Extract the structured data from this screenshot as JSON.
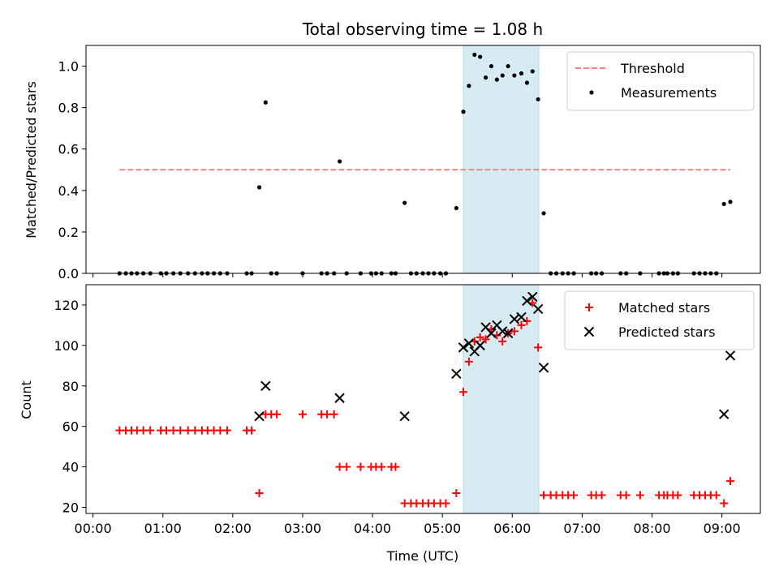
{
  "chart_data": {
    "title": "Total observing time = 1.08 h",
    "xlabel": "Time (UTC)",
    "x_unit": "hours",
    "xlim": [
      -0.1,
      9.55
    ],
    "xticks": [
      0,
      1,
      2,
      3,
      4,
      5,
      6,
      7,
      8,
      9
    ],
    "xticklabels": [
      "00:00",
      "01:00",
      "02:00",
      "03:00",
      "04:00",
      "05:00",
      "06:00",
      "07:00",
      "08:00",
      "09:00"
    ],
    "highlight_span": {
      "x0": 5.3,
      "x1": 6.38,
      "color": "#add8e6"
    },
    "panels": [
      {
        "type": "scatter",
        "ylabel": "Matched/Predicted stars",
        "ylim": [
          0.0,
          1.1
        ],
        "yticks": [
          0.0,
          0.2,
          0.4,
          0.6,
          0.8,
          1.0
        ],
        "yticklabels": [
          "0.0",
          "0.2",
          "0.4",
          "0.6",
          "0.8",
          "1.0"
        ],
        "legend_position": "top-right",
        "series": [
          {
            "name": "Threshold",
            "kind": "line",
            "style": "dashed",
            "color": "#ff8080",
            "x": [
              0.38,
              9.12
            ],
            "y": [
              0.5,
              0.5
            ]
          },
          {
            "name": "Measurements",
            "kind": "scatter",
            "marker": "dot",
            "color": "#000000",
            "points": [
              [
                0.38,
                0
              ],
              [
                0.47,
                0
              ],
              [
                0.55,
                0
              ],
              [
                0.63,
                0
              ],
              [
                0.72,
                0
              ],
              [
                0.82,
                0
              ],
              [
                0.97,
                0
              ],
              [
                1.05,
                0
              ],
              [
                1.15,
                0
              ],
              [
                1.25,
                0
              ],
              [
                1.36,
                0
              ],
              [
                1.46,
                0
              ],
              [
                1.56,
                0
              ],
              [
                1.64,
                0
              ],
              [
                1.73,
                0
              ],
              [
                1.82,
                0
              ],
              [
                1.92,
                0
              ],
              [
                2.2,
                0
              ],
              [
                2.27,
                0
              ],
              [
                2.38,
                0.415
              ],
              [
                2.47,
                0.825
              ],
              [
                2.55,
                0
              ],
              [
                2.63,
                0
              ],
              [
                3.0,
                0
              ],
              [
                3.27,
                0
              ],
              [
                3.35,
                0
              ],
              [
                3.45,
                0
              ],
              [
                3.53,
                0.54
              ],
              [
                3.63,
                0
              ],
              [
                3.83,
                0
              ],
              [
                3.98,
                0
              ],
              [
                4.05,
                0
              ],
              [
                4.13,
                0
              ],
              [
                4.27,
                0
              ],
              [
                4.33,
                0
              ],
              [
                4.46,
                0.34
              ],
              [
                4.55,
                0
              ],
              [
                4.63,
                0
              ],
              [
                4.72,
                0
              ],
              [
                4.8,
                0
              ],
              [
                4.88,
                0
              ],
              [
                4.97,
                0
              ],
              [
                5.05,
                0
              ],
              [
                5.2,
                0.315
              ],
              [
                5.3,
                0.78
              ],
              [
                5.38,
                0.905
              ],
              [
                5.46,
                1.055
              ],
              [
                5.54,
                1.045
              ],
              [
                5.62,
                0.945
              ],
              [
                5.7,
                1.0
              ],
              [
                5.78,
                0.935
              ],
              [
                5.86,
                0.955
              ],
              [
                5.94,
                1.0
              ],
              [
                6.03,
                0.955
              ],
              [
                6.13,
                0.965
              ],
              [
                6.21,
                0.92
              ],
              [
                6.29,
                0.975
              ],
              [
                6.37,
                0.84
              ],
              [
                6.45,
                0.29
              ],
              [
                6.55,
                0
              ],
              [
                6.63,
                0
              ],
              [
                6.72,
                0
              ],
              [
                6.8,
                0
              ],
              [
                6.88,
                0
              ],
              [
                7.13,
                0
              ],
              [
                7.2,
                0
              ],
              [
                7.28,
                0
              ],
              [
                7.55,
                0
              ],
              [
                7.63,
                0
              ],
              [
                7.83,
                0
              ],
              [
                8.1,
                0
              ],
              [
                8.17,
                0
              ],
              [
                8.22,
                0
              ],
              [
                8.3,
                0
              ],
              [
                8.37,
                0
              ],
              [
                8.6,
                0
              ],
              [
                8.68,
                0
              ],
              [
                8.76,
                0
              ],
              [
                8.84,
                0
              ],
              [
                8.92,
                0
              ],
              [
                9.03,
                0.335
              ],
              [
                9.12,
                0.345
              ]
            ]
          }
        ]
      },
      {
        "type": "scatter",
        "ylabel": "Count",
        "ylim": [
          17,
          130
        ],
        "yticks": [
          20,
          40,
          60,
          80,
          100,
          120
        ],
        "yticklabels": [
          "20",
          "40",
          "60",
          "80",
          "100",
          "120"
        ],
        "legend_position": "top-right",
        "series": [
          {
            "name": "Matched stars",
            "kind": "scatter",
            "marker": "plus",
            "color": "#ff0000",
            "points": [
              [
                0.38,
                58
              ],
              [
                0.47,
                58
              ],
              [
                0.55,
                58
              ],
              [
                0.63,
                58
              ],
              [
                0.72,
                58
              ],
              [
                0.82,
                58
              ],
              [
                0.97,
                58
              ],
              [
                1.05,
                58
              ],
              [
                1.15,
                58
              ],
              [
                1.25,
                58
              ],
              [
                1.36,
                58
              ],
              [
                1.46,
                58
              ],
              [
                1.56,
                58
              ],
              [
                1.64,
                58
              ],
              [
                1.73,
                58
              ],
              [
                1.82,
                58
              ],
              [
                1.92,
                58
              ],
              [
                2.2,
                58
              ],
              [
                2.27,
                58
              ],
              [
                2.38,
                27
              ],
              [
                2.47,
                66
              ],
              [
                2.55,
                66
              ],
              [
                2.63,
                66
              ],
              [
                3.0,
                66
              ],
              [
                3.27,
                66
              ],
              [
                3.35,
                66
              ],
              [
                3.45,
                66
              ],
              [
                3.53,
                40
              ],
              [
                3.63,
                40
              ],
              [
                3.83,
                40
              ],
              [
                3.98,
                40
              ],
              [
                4.05,
                40
              ],
              [
                4.13,
                40
              ],
              [
                4.27,
                40
              ],
              [
                4.33,
                40
              ],
              [
                4.46,
                22
              ],
              [
                4.55,
                22
              ],
              [
                4.63,
                22
              ],
              [
                4.72,
                22
              ],
              [
                4.8,
                22
              ],
              [
                4.88,
                22
              ],
              [
                4.97,
                22
              ],
              [
                5.05,
                22
              ],
              [
                5.2,
                27
              ],
              [
                5.3,
                77
              ],
              [
                5.38,
                92
              ],
              [
                5.46,
                102
              ],
              [
                5.54,
                104
              ],
              [
                5.62,
                103
              ],
              [
                5.7,
                108
              ],
              [
                5.78,
                105
              ],
              [
                5.86,
                102
              ],
              [
                5.94,
                106
              ],
              [
                6.03,
                107
              ],
              [
                6.13,
                110
              ],
              [
                6.21,
                112
              ],
              [
                6.29,
                121
              ],
              [
                6.37,
                99
              ],
              [
                6.45,
                26
              ],
              [
                6.55,
                26
              ],
              [
                6.63,
                26
              ],
              [
                6.72,
                26
              ],
              [
                6.8,
                26
              ],
              [
                6.88,
                26
              ],
              [
                7.13,
                26
              ],
              [
                7.2,
                26
              ],
              [
                7.28,
                26
              ],
              [
                7.55,
                26
              ],
              [
                7.63,
                26
              ],
              [
                7.83,
                26
              ],
              [
                8.1,
                26
              ],
              [
                8.17,
                26
              ],
              [
                8.22,
                26
              ],
              [
                8.3,
                26
              ],
              [
                8.37,
                26
              ],
              [
                8.6,
                26
              ],
              [
                8.68,
                26
              ],
              [
                8.76,
                26
              ],
              [
                8.84,
                26
              ],
              [
                8.92,
                26
              ],
              [
                9.03,
                22
              ],
              [
                9.12,
                33
              ]
            ]
          },
          {
            "name": "Predicted stars",
            "kind": "scatter",
            "marker": "x",
            "color": "#000000",
            "points": [
              [
                2.38,
                65
              ],
              [
                2.47,
                80
              ],
              [
                3.53,
                74
              ],
              [
                4.46,
                65
              ],
              [
                5.2,
                86
              ],
              [
                5.3,
                99
              ],
              [
                5.38,
                101
              ],
              [
                5.46,
                97
              ],
              [
                5.54,
                100
              ],
              [
                5.62,
                109
              ],
              [
                5.7,
                106
              ],
              [
                5.78,
                110
              ],
              [
                5.86,
                107
              ],
              [
                5.94,
                106
              ],
              [
                6.03,
                113
              ],
              [
                6.13,
                114
              ],
              [
                6.21,
                122
              ],
              [
                6.29,
                124
              ],
              [
                6.37,
                118
              ],
              [
                6.45,
                89
              ],
              [
                9.03,
                66
              ],
              [
                9.12,
                95
              ]
            ]
          }
        ]
      }
    ]
  }
}
